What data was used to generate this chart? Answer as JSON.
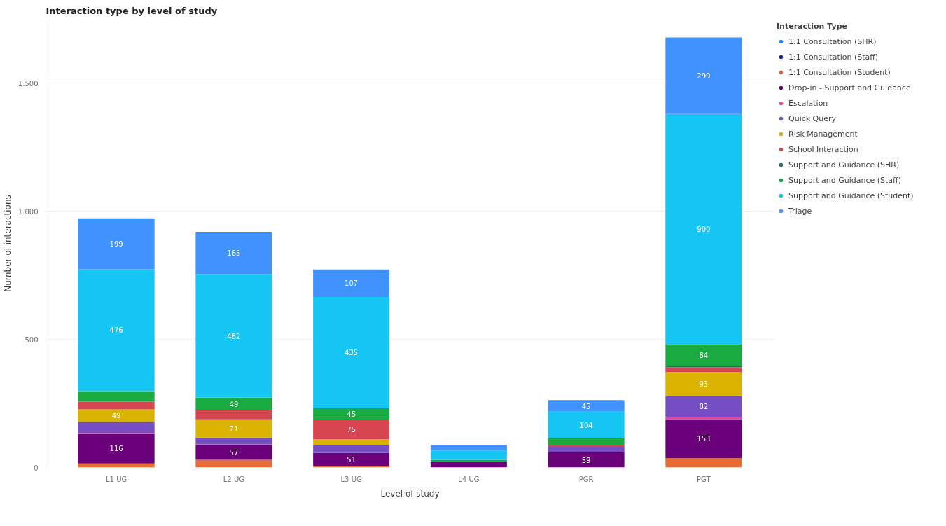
{
  "chart_data": {
    "type": "bar",
    "stacked": true,
    "title": "Interaction type by level of study",
    "xlabel": "Level of study",
    "ylabel": "Number of interactions",
    "legend_title": "Interaction Type",
    "categories": [
      "L1 UG",
      "L2 UG",
      "L3 UG",
      "L4 UG",
      "PGR",
      "PGT"
    ],
    "ylim": [
      0,
      1750
    ],
    "yticks": [
      0,
      500,
      {
        "value": 1000,
        "label": "1.000"
      },
      {
        "value": 1500,
        "label": "1.500"
      }
    ],
    "grid": "y",
    "legend": "right",
    "series": [
      {
        "name": "1:1 Consultation (SHR)",
        "color": "#118dff",
        "values": [
          null,
          null,
          null,
          null,
          null,
          null
        ]
      },
      {
        "name": "1:1 Consultation (Staff)",
        "color": "#12239e",
        "values": [
          null,
          null,
          null,
          null,
          null,
          null
        ]
      },
      {
        "name": "1:1 Consultation (Student)",
        "color": "#e66c37",
        "values": [
          16,
          30,
          6,
          null,
          null,
          36
        ]
      },
      {
        "name": "Drop-in - Support and Guidance",
        "color": "#6b007b",
        "values": [
          116,
          57,
          51,
          22,
          59,
          153
        ],
        "value_labels": [
          "116",
          "57",
          "51",
          null,
          "59",
          "153"
        ]
      },
      {
        "name": "Escalation",
        "color": "#e044a7",
        "values": [
          3,
          3,
          null,
          null,
          null,
          8
        ]
      },
      {
        "name": "Quick Query",
        "color": "#744ec2",
        "values": [
          43,
          27,
          29,
          null,
          22,
          82
        ],
        "value_labels": [
          null,
          null,
          null,
          null,
          null,
          "82"
        ]
      },
      {
        "name": "Risk Management",
        "color": "#d9b300",
        "values": [
          49,
          71,
          25,
          null,
          null,
          93
        ],
        "value_labels": [
          "49",
          "71",
          null,
          null,
          null,
          "93"
        ]
      },
      {
        "name": "School Interaction",
        "color": "#d64550",
        "values": [
          30,
          36,
          75,
          null,
          5,
          19
        ],
        "value_labels": [
          null,
          null,
          "75",
          null,
          null,
          null
        ]
      },
      {
        "name": "Support and Guidance (SHR)",
        "color": "#197278",
        "values": [
          null,
          null,
          null,
          null,
          null,
          5
        ]
      },
      {
        "name": "Support and Guidance (Staff)",
        "color": "#1aab40",
        "values": [
          41,
          49,
          45,
          8,
          28,
          84
        ],
        "value_labels": [
          null,
          "49",
          "45",
          null,
          null,
          "84"
        ]
      },
      {
        "name": "Support and Guidance (Student)",
        "color": "#15c6f4",
        "values": [
          476,
          482,
          435,
          36,
          104,
          900
        ],
        "value_labels": [
          "476",
          "482",
          "435",
          null,
          "104",
          "900"
        ]
      },
      {
        "name": "Triage",
        "color": "#4092ff",
        "values": [
          199,
          165,
          107,
          23,
          45,
          299
        ],
        "value_labels": [
          "199",
          "165",
          "107",
          null,
          "45",
          "299"
        ]
      }
    ]
  }
}
